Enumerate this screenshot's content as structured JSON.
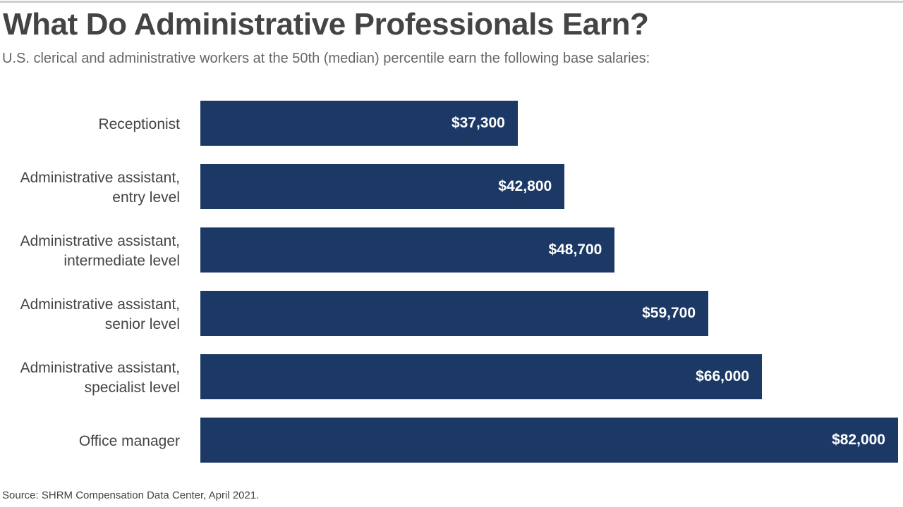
{
  "chart_data": {
    "type": "bar",
    "orientation": "horizontal",
    "title": "What Do Administrative Professionals Earn?",
    "subtitle": "U.S. clerical and administrative workers at the 50th (median) percentile earn the following base salaries:",
    "categories": [
      [
        "Receptionist"
      ],
      [
        "Administrative assistant,",
        "entry level"
      ],
      [
        "Administrative assistant,",
        "intermediate level"
      ],
      [
        "Administrative assistant,",
        "senior level"
      ],
      [
        "Administrative assistant,",
        "specialist level"
      ],
      [
        "Office manager"
      ]
    ],
    "values": [
      37300,
      42800,
      48700,
      59700,
      66000,
      82000
    ],
    "value_labels": [
      "$37,300",
      "$42,800",
      "$48,700",
      "$59,700",
      "$66,000",
      "$82,000"
    ],
    "xlim": [
      0,
      82000
    ],
    "xlabel": "",
    "ylabel": "",
    "grid": false,
    "bar_color": "#1c3966",
    "source": "Source: SHRM Compensation Data Center, April 2021."
  }
}
